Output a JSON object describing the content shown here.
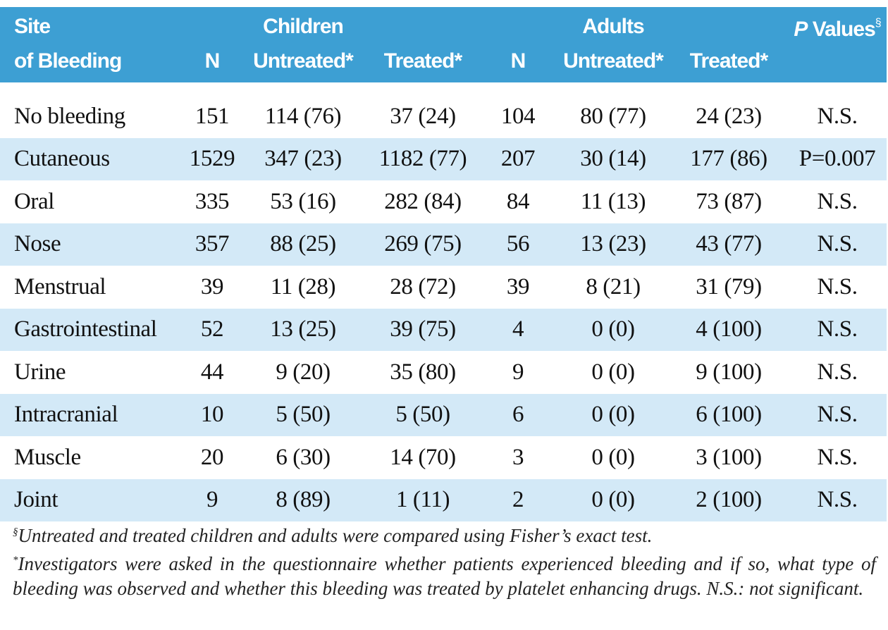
{
  "header": {
    "row1": {
      "site": "Site",
      "children": "Children",
      "adults": "Adults",
      "p_values": {
        "p": "P",
        "rest": "Values",
        "mark": "§"
      }
    },
    "row2": [
      "of Bleeding",
      "N",
      "Untreated*",
      "Treated*",
      "N",
      "Untreated*",
      "Treated*"
    ]
  },
  "table": {
    "rows": [
      [
        "No bleeding",
        "151",
        "114 (76)",
        "37 (24)",
        "104",
        "80 (77)",
        "24 (23)",
        "N.S."
      ],
      [
        "Cutaneous",
        "1529",
        "347 (23)",
        "1182 (77)",
        "207",
        "30 (14)",
        "177 (86)",
        "P=0.007"
      ],
      [
        "Oral",
        "335",
        "53 (16)",
        "282 (84)",
        "84",
        "11 (13)",
        "73 (87)",
        "N.S."
      ],
      [
        "Nose",
        "357",
        "88 (25)",
        "269 (75)",
        "56",
        "13 (23)",
        "43 (77)",
        "N.S."
      ],
      [
        "Menstrual",
        "39",
        "11 (28)",
        "28 (72)",
        "39",
        "8 (21)",
        "31 (79)",
        "N.S."
      ],
      [
        "Gastrointestinal",
        "52",
        "13 (25)",
        "39 (75)",
        "4",
        "0 (0)",
        "4 (100)",
        "N.S."
      ],
      [
        "Urine",
        "44",
        "9 (20)",
        "35 (80)",
        "9",
        "0 (0)",
        "9 (100)",
        "N.S."
      ],
      [
        "Intracranial",
        "10",
        "5 (50)",
        "5 (50)",
        "6",
        "0 (0)",
        "6 (100)",
        "N.S."
      ],
      [
        "Muscle",
        "20",
        "6 (30)",
        "14 (70)",
        "3",
        "0 (0)",
        "3 (100)",
        "N.S."
      ],
      [
        "Joint",
        "9",
        "8 (89)",
        "1 (11)",
        "2",
        "0 (0)",
        "2 (100)",
        "N.S."
      ]
    ]
  },
  "footnotes": [
    {
      "mark": "§",
      "text": "Untreated and treated children and adults were compared using Fisher’s exact test."
    },
    {
      "mark": "*",
      "text": "Investigators were asked in the questionnaire whether patients experienced bleeding and if so, what type of bleeding was observed and whether this bleeding was treated by platelet enhancing drugs. N.S.: not significant."
    }
  ]
}
